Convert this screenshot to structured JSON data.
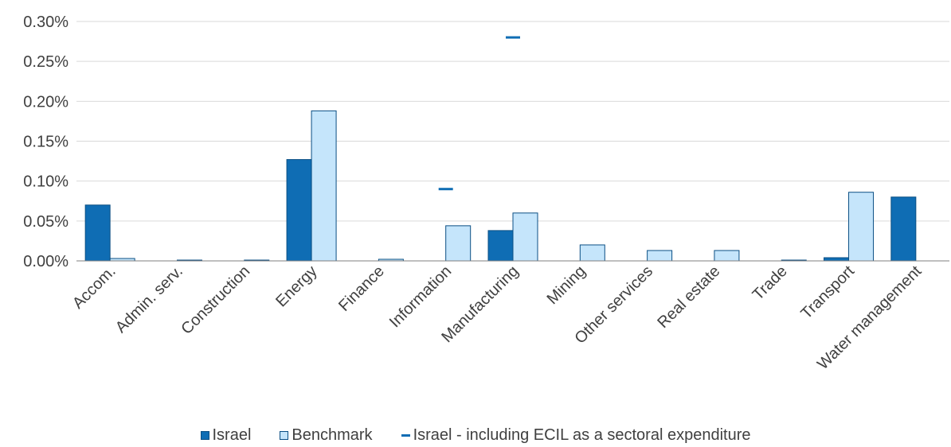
{
  "chart_data": {
    "type": "bar",
    "categories": [
      "Accom.",
      "Admin. serv.",
      "Construction",
      "Energy",
      "Finance",
      "Information",
      "Manufacturing",
      "Mining",
      "Other services",
      "Real estate",
      "Trade",
      "Transport",
      "Water management"
    ],
    "series": [
      {
        "name": "Israel",
        "values": [
          0.0007,
          0.0,
          0.0,
          0.00127,
          0.0,
          0.0,
          0.00038,
          0.0,
          0.0,
          0.0,
          0.0,
          4e-05,
          0.0008
        ],
        "color": "#0f6db4"
      },
      {
        "name": "Benchmark",
        "values": [
          3e-05,
          1e-05,
          1e-05,
          0.00188,
          2e-05,
          0.00044,
          0.0006,
          0.0002,
          0.00013,
          0.00013,
          1e-05,
          0.00086,
          0.0
        ],
        "color": "#c5e5fb"
      },
      {
        "name": "Israel - including ECIL as a sectoral expenditure",
        "type": "marker",
        "values": [
          null,
          null,
          null,
          null,
          null,
          0.0009,
          0.0028,
          null,
          null,
          null,
          null,
          null,
          null
        ],
        "color": "#0f6db4"
      }
    ],
    "y_ticks": [
      "0.00%",
      "0.05%",
      "0.10%",
      "0.15%",
      "0.20%",
      "0.25%",
      "0.30%"
    ],
    "ylim": [
      0,
      0.003
    ],
    "grid": true,
    "legend_position": "bottom",
    "xlabel": "",
    "ylabel": ""
  }
}
